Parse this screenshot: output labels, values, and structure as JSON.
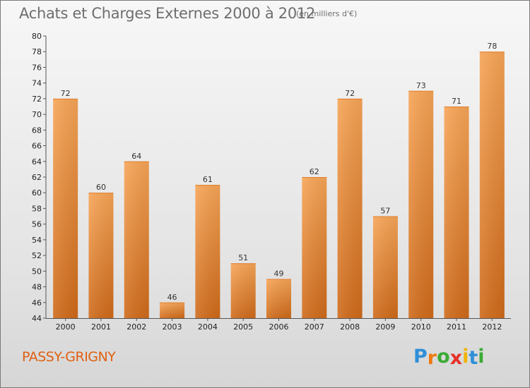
{
  "chart_data": {
    "type": "bar",
    "title": "Achats et Charges Externes 2000 à 2012",
    "subtitle": "(en milliers d'€)",
    "categories": [
      "2000",
      "2001",
      "2002",
      "2003",
      "2004",
      "2005",
      "2006",
      "2007",
      "2008",
      "2009",
      "2010",
      "2011",
      "2012"
    ],
    "values": [
      72,
      60,
      64,
      46,
      61,
      51,
      49,
      62,
      72,
      57,
      73,
      71,
      78
    ],
    "ylim": [
      44,
      80
    ],
    "yticks": [
      44,
      46,
      48,
      50,
      52,
      54,
      56,
      58,
      60,
      62,
      64,
      66,
      68,
      70,
      72,
      74,
      76,
      78,
      80
    ],
    "xlabel": "",
    "ylabel": "",
    "grid": false,
    "bar_color": "#f0923a"
  },
  "location": "PASSY-GRIGNY",
  "brand": {
    "letters": [
      "P",
      "r",
      "o",
      "x",
      "i",
      "t",
      "i"
    ],
    "colors": [
      "#2f8fd8",
      "#f07a10",
      "#3aaa35",
      "#e5302a",
      "#f0b400",
      "#2f8fd8",
      "#3aaa35"
    ]
  }
}
